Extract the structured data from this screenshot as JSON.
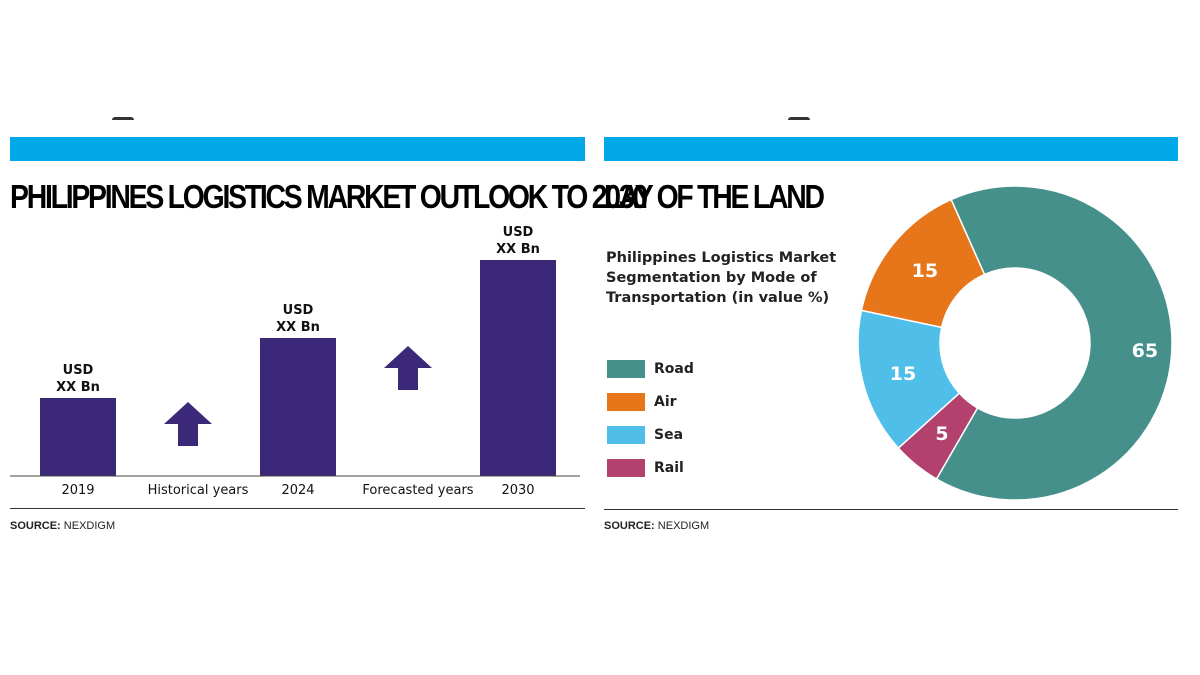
{
  "left_panel": {
    "title": "PHILIPPINES LOGISTICS MARKET OUTLOOK TO 2030",
    "source_label": "SOURCE:",
    "source_value": "NEXDIGM"
  },
  "right_panel": {
    "title": "LAY OF THE LAND",
    "segmentation_title": "Philippines Logistics Market Segmentation by Mode of Transportation (in value %)",
    "source_label": "SOURCE:",
    "source_value": "NEXDIGM"
  },
  "colors": {
    "accent_bar": "#00a8e8",
    "bar": "#3b2878",
    "road": "#45908a",
    "air": "#e7761b",
    "sea": "#4fbfea",
    "rail": "#b3416e"
  },
  "chart_data": [
    {
      "type": "bar",
      "categories": [
        "2019",
        "2024",
        "2030"
      ],
      "values": [
        78,
        138,
        216
      ],
      "data_labels": [
        [
          "USD",
          "XX Bn"
        ],
        [
          "USD",
          "XX Bn"
        ],
        [
          "USD",
          "XX Bn"
        ]
      ],
      "between_labels": [
        "Historical years",
        "Forecasted years"
      ],
      "title": "PHILIPPINES LOGISTICS MARKET OUTLOOK TO 2030",
      "xlabel": "",
      "ylabel": "",
      "grid": false,
      "note": ""
    },
    {
      "type": "pie",
      "title": "Philippines Logistics Market Segmentation by Mode of Transportation (in value %)",
      "donut": true,
      "legend_position": "left",
      "slices": [
        {
          "label": "Road",
          "value": 65,
          "color": "#45908a"
        },
        {
          "label": "Rail",
          "value": 5,
          "color": "#b3416e"
        },
        {
          "label": "Sea",
          "value": 15,
          "color": "#4fbfea"
        },
        {
          "label": "Air",
          "value": 15,
          "color": "#e7761b"
        }
      ]
    }
  ]
}
